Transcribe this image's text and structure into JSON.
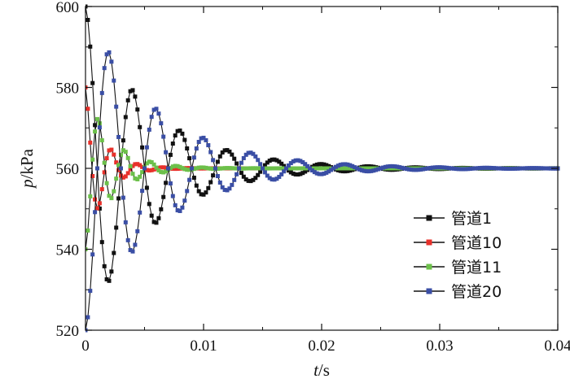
{
  "chart_data": {
    "type": "line",
    "title": "",
    "xlabel": {
      "var": "t",
      "unit": "/s"
    },
    "ylabel": {
      "var": "p",
      "unit": "/kPa"
    },
    "xlim": [
      0,
      0.04
    ],
    "ylim": [
      520,
      600
    ],
    "x_ticks": [
      0,
      0.01,
      0.02,
      0.03,
      0.04
    ],
    "x_tick_labels": [
      "0",
      "0.01",
      "0.02",
      "0.03",
      "0.04"
    ],
    "y_ticks": [
      520,
      540,
      560,
      580,
      600
    ],
    "y_tick_labels": [
      "520",
      "540",
      "560",
      "580",
      "600"
    ],
    "grid": false,
    "legend": {
      "position": "bottom-right"
    },
    "series": [
      {
        "name": "管道1",
        "color": "#111111",
        "model": {
          "type": "damped-oscillation",
          "offset": 560,
          "amplitude": 40,
          "period": 0.004,
          "decay_time": 0.0055,
          "phase": "cosine",
          "t_end": 0.04,
          "dt": 0.0002
        }
      },
      {
        "name": "管道10",
        "color": "#e8302a",
        "model": {
          "type": "damped-oscillation",
          "offset": 560,
          "amplitude": 20,
          "period": 0.0022,
          "decay_time": 0.0015,
          "phase": "cosine",
          "t_end": 0.04,
          "dt": 0.0002
        }
      },
      {
        "name": "管道11",
        "color": "#6cc04a",
        "model": {
          "type": "damped-oscillation",
          "offset": 560,
          "amplitude": -20,
          "period": 0.0022,
          "decay_time": 0.0022,
          "phase": "cosine",
          "t_end": 0.04,
          "dt": 0.0002
        }
      },
      {
        "name": "管道20",
        "color": "#3a4ea5",
        "model": {
          "type": "damped-oscillation",
          "offset": 560,
          "amplitude": -40,
          "period": 0.004,
          "decay_time": 0.006,
          "phase": "cosine",
          "t_end": 0.04,
          "dt": 0.0002
        }
      }
    ]
  }
}
